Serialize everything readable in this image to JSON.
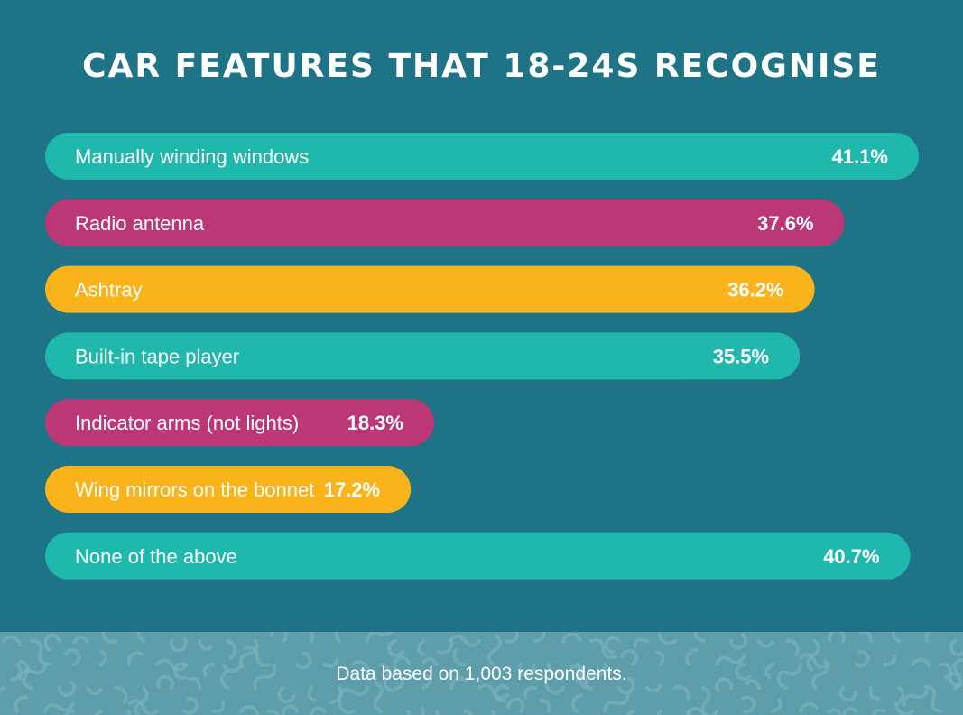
{
  "title": "CAR FEATURES THAT 18-24s RECOGNISE",
  "footer_note": "Data based on 1,003 respondents.",
  "colors": {
    "background": "#1f7387",
    "teal": "#1fb8ad",
    "magenta": "#bc3776",
    "yellow": "#fbb31c",
    "footer": "#5e9eaa"
  },
  "chart_data": {
    "type": "bar",
    "orientation": "horizontal",
    "categories": [
      "Manually winding windows",
      "Radio antenna",
      "Ashtray",
      "Built-in tape player",
      "Indicator arms (not lights)",
      "Wing mirrors on the bonnet",
      "None of the above"
    ],
    "values": [
      41.1,
      37.6,
      36.2,
      35.5,
      18.3,
      17.2,
      40.7
    ],
    "value_labels": [
      "41.1%",
      "37.6%",
      "36.2%",
      "35.5%",
      "18.3%",
      "17.2%",
      "40.7%"
    ],
    "bar_colors": [
      "#1fb8ad",
      "#bc3776",
      "#fbb31c",
      "#1fb8ad",
      "#bc3776",
      "#fbb31c",
      "#1fb8ad"
    ],
    "unit": "%",
    "title": "CAR FEATURES THAT 18-24s RECOGNISE",
    "xlabel": "",
    "ylabel": "",
    "grid": false,
    "legend": "none"
  }
}
